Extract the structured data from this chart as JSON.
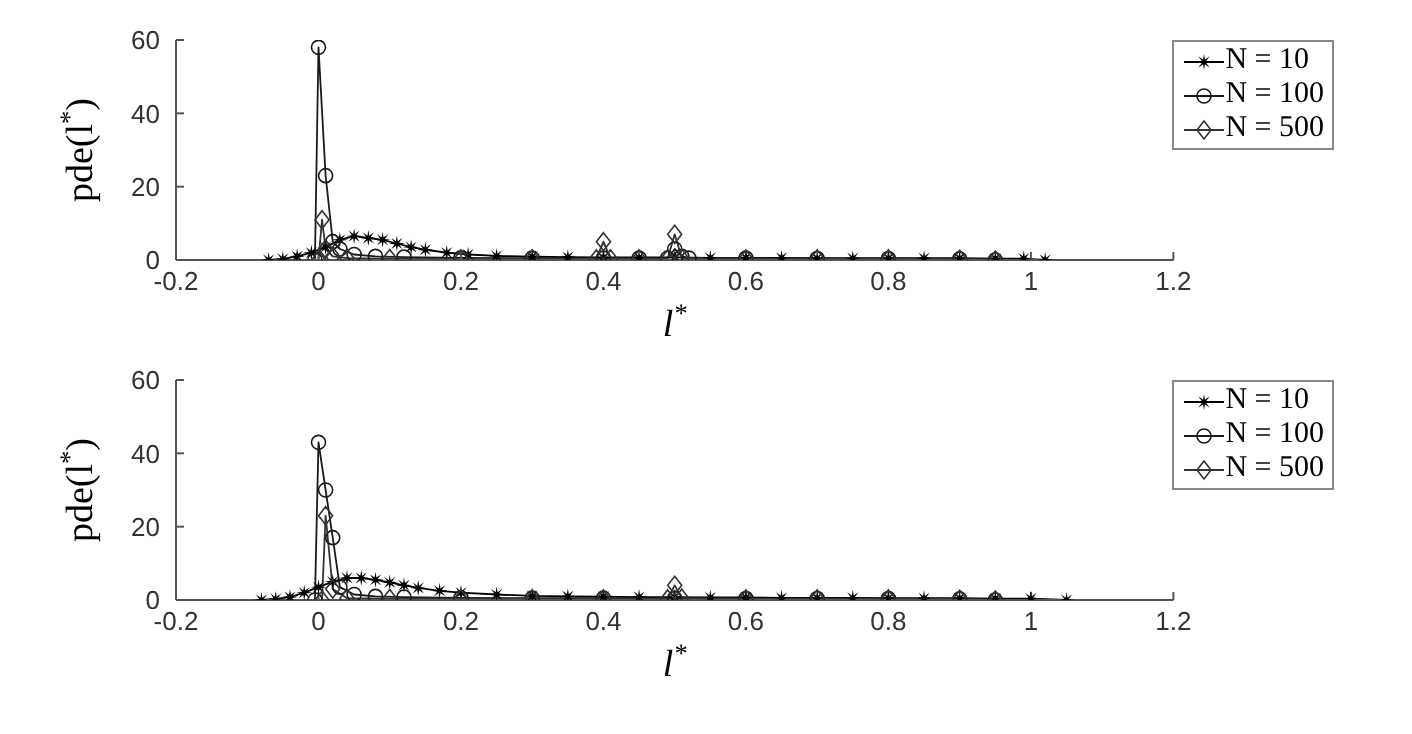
{
  "chart_data": [
    {
      "type": "line",
      "xlabel": "l$^{*}$",
      "ylabel": "pde(l$^{*}$)",
      "xlim": [
        -0.2,
        1.2
      ],
      "xticks": [
        -0.2,
        0,
        0.2,
        0.4,
        0.6,
        0.8,
        1,
        1.2
      ],
      "ylim": [
        0,
        60
      ],
      "yticks": [
        0,
        20,
        40,
        60
      ],
      "grid": false,
      "legend": "top right",
      "line_style": "solid",
      "series": [
        {
          "name": "N = 10",
          "color": "#000000",
          "marker": "star",
          "x": [
            -0.07,
            -0.05,
            -0.03,
            -0.01,
            0.01,
            0.03,
            0.05,
            0.07,
            0.09,
            0.11,
            0.13,
            0.15,
            0.18,
            0.21,
            0.25,
            0.3,
            0.35,
            0.4,
            0.45,
            0.5,
            0.55,
            0.6,
            0.65,
            0.7,
            0.75,
            0.8,
            0.85,
            0.9,
            0.95,
            0.99,
            1.02
          ],
          "values": [
            0,
            0.3,
            1,
            2,
            3.5,
            5.5,
            6.5,
            6,
            5.5,
            4.5,
            3.5,
            2.8,
            2,
            1.5,
            1.1,
            0.9,
            0.8,
            0.7,
            0.7,
            0.7,
            0.6,
            0.6,
            0.6,
            0.5,
            0.5,
            0.5,
            0.5,
            0.5,
            0.4,
            0.4,
            0
          ]
        },
        {
          "name": "N = 100",
          "color": "#1a1a1a",
          "marker": "circle",
          "x": [
            -0.005,
            0,
            0.01,
            0.02,
            0.03,
            0.05,
            0.08,
            0.12,
            0.2,
            0.3,
            0.4,
            0.45,
            0.49,
            0.5,
            0.51,
            0.52,
            0.6,
            0.7,
            0.8,
            0.9,
            0.95
          ],
          "values": [
            0,
            58,
            23,
            5,
            3,
            1.5,
            1,
            0.8,
            0.6,
            0.5,
            0.5,
            0.5,
            0.5,
            3,
            1,
            0.5,
            0.5,
            0.4,
            0.4,
            0.3,
            0
          ]
        },
        {
          "name": "N = 500",
          "color": "#333333",
          "marker": "diamond",
          "x": [
            0,
            0.005,
            0.01,
            0.02,
            0.04,
            0.1,
            0.2,
            0.3,
            0.39,
            0.4,
            0.41,
            0.45,
            0.49,
            0.5,
            0.51,
            0.6,
            0.7,
            0.8,
            0.9,
            0.95
          ],
          "values": [
            0,
            11,
            3,
            1,
            0.5,
            0.4,
            0.3,
            0.3,
            0.3,
            5,
            0.3,
            0.3,
            0.3,
            7,
            0.5,
            0.3,
            0.3,
            0.3,
            0.2,
            0
          ]
        }
      ]
    },
    {
      "type": "line",
      "xlabel": "l$^{*}$",
      "ylabel": "pde(l$^{*}$)",
      "xlim": [
        -0.2,
        1.2
      ],
      "xticks": [
        -0.2,
        0,
        0.2,
        0.4,
        0.6,
        0.8,
        1,
        1.2
      ],
      "ylim": [
        0,
        60
      ],
      "yticks": [
        0,
        20,
        40,
        60
      ],
      "grid": false,
      "legend": "top right",
      "line_style": "solid",
      "series": [
        {
          "name": "N = 10",
          "color": "#000000",
          "marker": "star",
          "x": [
            -0.08,
            -0.06,
            -0.04,
            -0.02,
            0,
            0.02,
            0.04,
            0.06,
            0.08,
            0.1,
            0.12,
            0.14,
            0.17,
            0.2,
            0.25,
            0.3,
            0.35,
            0.4,
            0.45,
            0.5,
            0.55,
            0.6,
            0.65,
            0.7,
            0.75,
            0.8,
            0.85,
            0.9,
            0.95,
            1,
            1.05
          ],
          "values": [
            0,
            0.3,
            0.8,
            2,
            3.5,
            5,
            6,
            6,
            5.5,
            4.8,
            4,
            3.3,
            2.5,
            2,
            1.5,
            1.1,
            1,
            0.9,
            0.8,
            0.8,
            0.7,
            0.7,
            0.6,
            0.6,
            0.6,
            0.5,
            0.5,
            0.5,
            0.4,
            0.4,
            0
          ]
        },
        {
          "name": "N = 100",
          "color": "#1a1a1a",
          "marker": "circle",
          "x": [
            -0.005,
            0,
            0.01,
            0.02,
            0.03,
            0.05,
            0.08,
            0.12,
            0.2,
            0.3,
            0.4,
            0.5,
            0.6,
            0.7,
            0.8,
            0.9,
            0.95
          ],
          "values": [
            0,
            43,
            30,
            17,
            3.5,
            1.5,
            1,
            0.8,
            0.6,
            0.5,
            0.5,
            0.5,
            0.4,
            0.4,
            0.4,
            0.3,
            0
          ]
        },
        {
          "name": "N = 500",
          "color": "#333333",
          "marker": "diamond",
          "x": [
            0.005,
            0.01,
            0.02,
            0.04,
            0.1,
            0.2,
            0.3,
            0.4,
            0.49,
            0.5,
            0.51,
            0.6,
            0.7,
            0.8,
            0.9,
            0.95
          ],
          "values": [
            0,
            23,
            3,
            0.5,
            0.4,
            0.3,
            0.3,
            0.3,
            0.3,
            4,
            0.5,
            0.3,
            0.3,
            0.3,
            0.2,
            0
          ]
        }
      ]
    }
  ]
}
